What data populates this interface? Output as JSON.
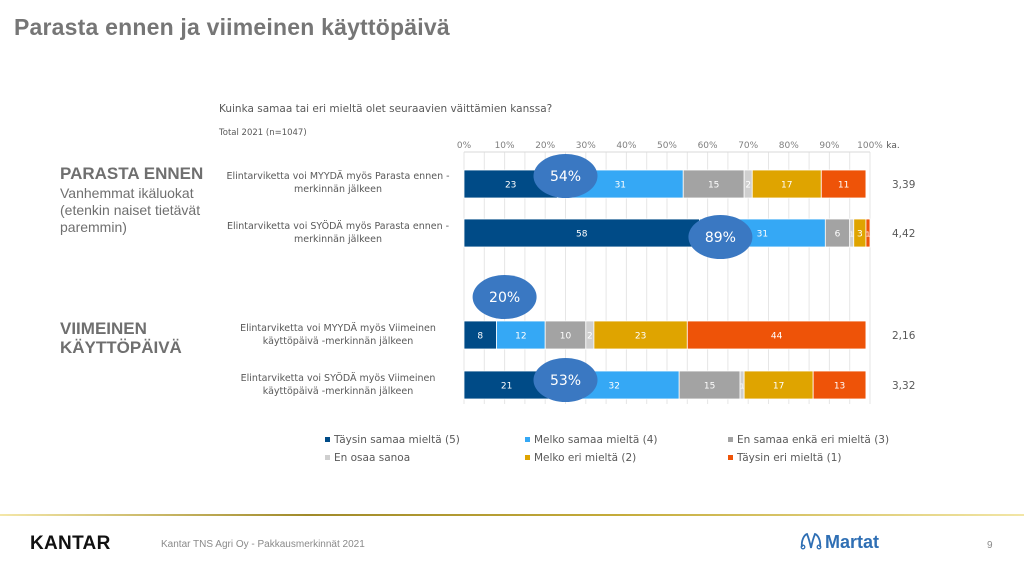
{
  "page": {
    "title": "Parasta ennen ja viimeinen käyttöpäivä",
    "question": "Kuinka samaa tai eri mieltä olet seuraavien väittämien kanssa?",
    "total": "Total 2021 (n=1047)",
    "sections": [
      {
        "heading": "PARASTA ENNEN",
        "subtext": "Vanhemmat ikäluokat (etenkin naiset tietävät paremmin)"
      },
      {
        "heading": "VIIMEINEN KÄYTTÖPÄIVÄ",
        "subtext": ""
      }
    ],
    "footer": {
      "brand": "KANTAR",
      "text": "Kantar TNS Agri Oy - Pakkausmerkinnät 2021",
      "partner": "Martat",
      "page_number": "9"
    }
  },
  "chart_data": {
    "type": "bar",
    "orientation": "horizontal-stacked-100",
    "title": "Kuinka samaa tai eri mieltä olet seuraavien väittämien kanssa?",
    "subtitle": "Total 2021 (n=1047)",
    "xlabel": "",
    "ylabel": "",
    "xlim": [
      0,
      100
    ],
    "x_ticks": [
      "0%",
      "10%",
      "20%",
      "30%",
      "40%",
      "50%",
      "60%",
      "70%",
      "80%",
      "90%",
      "100%"
    ],
    "extra_column_label": "ka.",
    "grid": true,
    "legend_position": "bottom",
    "categories": [
      "Elintarviketta voi MYYDÄ myös Parasta ennen -merkinnän jälkeen",
      "Elintarviketta voi SYÖDÄ myös Parasta ennen -merkinnän jälkeen",
      "Elintarviketta voi MYYDÄ myös Viimeinen käyttöpäivä -merkinnän jälkeen",
      "Elintarviketta voi SYÖDÄ myös Viimeinen käyttöpäivä -merkinnän jälkeen"
    ],
    "series": [
      {
        "name": "Täysin samaa mieltä (5)",
        "color": "#004b87",
        "values": [
          23,
          58,
          8,
          21
        ]
      },
      {
        "name": "Melko samaa mieltä (4)",
        "color": "#35a8f5",
        "values": [
          31,
          31,
          12,
          32
        ]
      },
      {
        "name": "En samaa enkä eri mieltä (3)",
        "color": "#a3a3a3",
        "values": [
          15,
          6,
          10,
          15
        ]
      },
      {
        "name": "En osaa sanoa",
        "color": "#cfcfcf",
        "values": [
          2,
          1,
          2,
          1
        ]
      },
      {
        "name": "Melko eri mieltä (2)",
        "color": "#dfa400",
        "values": [
          17,
          3,
          23,
          17
        ]
      },
      {
        "name": "Täysin eri mieltä (1)",
        "color": "#ee5308",
        "values": [
          11,
          1,
          44,
          13
        ]
      }
    ],
    "averages": [
      "3,39",
      "4,42",
      "2,16",
      "3,32"
    ],
    "annotations": [
      {
        "text": "54%",
        "row": 0,
        "at": 25
      },
      {
        "text": "89%",
        "row": 1,
        "at": 57
      },
      {
        "text": "20%",
        "row": 2,
        "at": 10
      },
      {
        "text": "53%",
        "row": 3,
        "at": 25
      }
    ]
  }
}
